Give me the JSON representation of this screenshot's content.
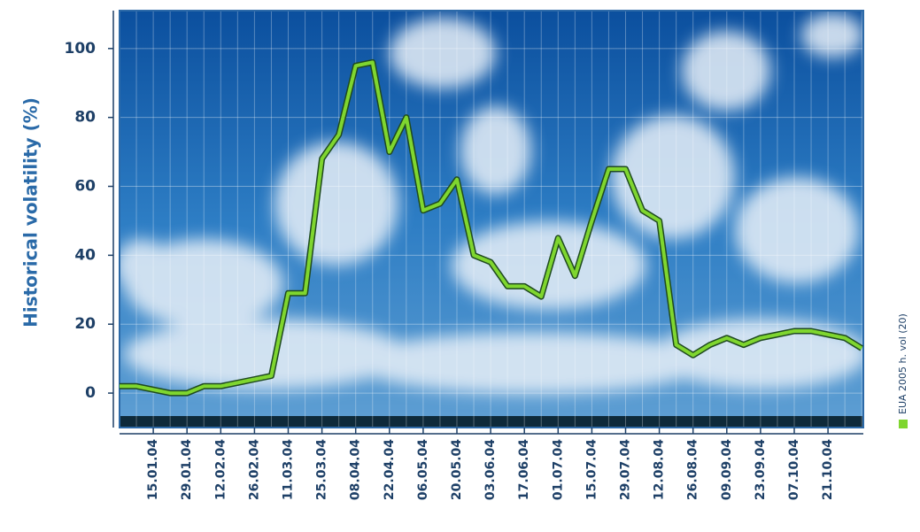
{
  "chart_data": {
    "type": "line",
    "y_axis_label": "Historical volatility (%)",
    "categories": [
      null,
      null,
      "15.01.04",
      null,
      "29.01.04",
      null,
      "12.02.04",
      null,
      "26.02.04",
      null,
      "11.03.04",
      null,
      "25.03.04",
      null,
      "08.04.04",
      null,
      "22.04.04",
      null,
      "06.05.04",
      null,
      "20.05.04",
      null,
      "03.06.04",
      null,
      "17.06.04",
      null,
      "01.07.04",
      null,
      "15.07.04",
      null,
      "29.07.04",
      null,
      "12.08.04",
      null,
      "26.08.04",
      null,
      "09.09.04",
      null,
      "23.09.04",
      null,
      "07.10.04",
      null,
      "21.10.04",
      null,
      null
    ],
    "series": [
      {
        "name": "EUA 2005 h. vol (20)",
        "color": "#7fd62f",
        "values": [
          2,
          2,
          1,
          0,
          0,
          2,
          2,
          3,
          4,
          5,
          29,
          29,
          68,
          75,
          95,
          96,
          70,
          80,
          53,
          55,
          62,
          40,
          38,
          31,
          31,
          28,
          45,
          34,
          50,
          65,
          65,
          53,
          50,
          14,
          11,
          14,
          16,
          14,
          16,
          17,
          18,
          18,
          17,
          16,
          13
        ]
      }
    ],
    "ylim": [
      -10,
      111
    ],
    "yticks": [
      0,
      20,
      40,
      60,
      80,
      100
    ],
    "grid": true,
    "legend": "right"
  }
}
